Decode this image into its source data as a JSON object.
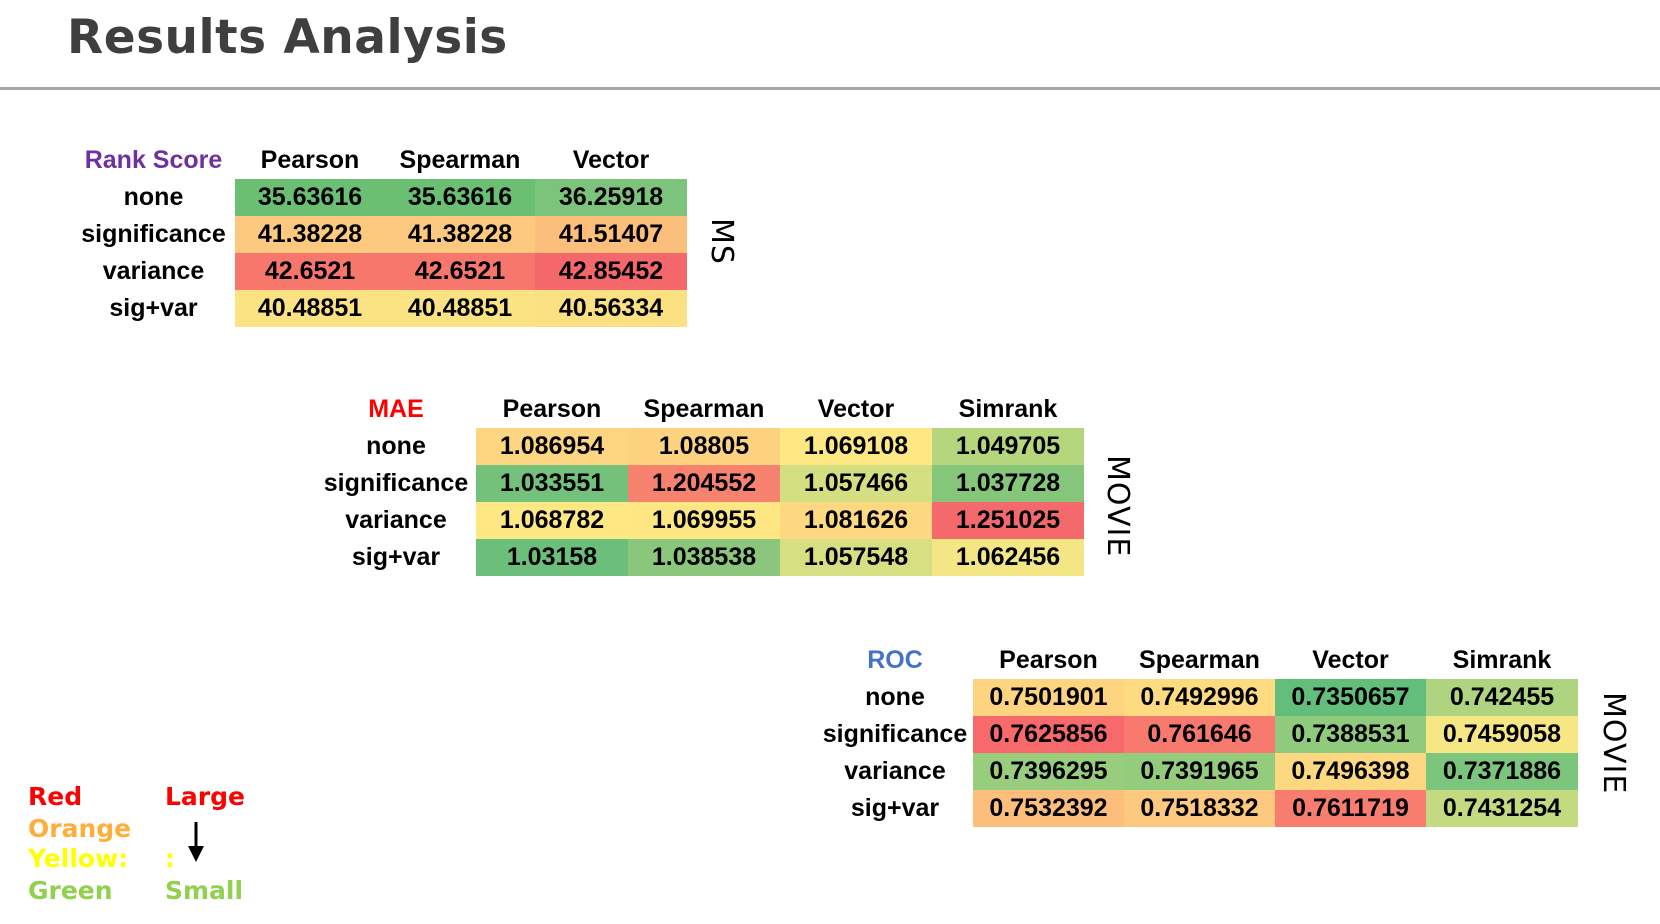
{
  "page": {
    "title": "Results Analysis"
  },
  "tables": [
    {
      "name": "Rank Score",
      "name_color": "#7030a0",
      "columns": [
        "Pearson",
        "Spearman",
        "Vector"
      ],
      "rows": [
        {
          "label": "none",
          "cells": [
            {
              "value": "35.63616",
              "color": "#6abf73"
            },
            {
              "value": "35.63616",
              "color": "#6abf73"
            },
            {
              "value": "36.25918",
              "color": "#7cc47c"
            }
          ]
        },
        {
          "label": "significance",
          "cells": [
            {
              "value": "41.38228",
              "color": "#fdc97f"
            },
            {
              "value": "41.38228",
              "color": "#fdc97f"
            },
            {
              "value": "41.51407",
              "color": "#fcbe7b"
            }
          ]
        },
        {
          "label": "variance",
          "cells": [
            {
              "value": "42.6521",
              "color": "#f8776d"
            },
            {
              "value": "42.6521",
              "color": "#f8776d"
            },
            {
              "value": "42.85452",
              "color": "#f4676b"
            }
          ]
        },
        {
          "label": "sig+var",
          "cells": [
            {
              "value": "40.48851",
              "color": "#fbe383"
            },
            {
              "value": "40.48851",
              "color": "#fbe383"
            },
            {
              "value": "40.56334",
              "color": "#fbe182"
            }
          ]
        }
      ],
      "side_label": "MS"
    },
    {
      "name": "MAE",
      "name_color": "#ff0000",
      "columns": [
        "Pearson",
        "Spearman",
        "Vector",
        "Simrank"
      ],
      "rows": [
        {
          "label": "none",
          "cells": [
            {
              "value": "1.086954",
              "color": "#fed580"
            },
            {
              "value": "1.08805",
              "color": "#fed380"
            },
            {
              "value": "1.069108",
              "color": "#fee883"
            },
            {
              "value": "1.049705",
              "color": "#b6d67e"
            }
          ]
        },
        {
          "label": "significance",
          "cells": [
            {
              "value": "1.033551",
              "color": "#73c17a"
            },
            {
              "value": "1.204552",
              "color": "#f7836f"
            },
            {
              "value": "1.057466",
              "color": "#d4df81"
            },
            {
              "value": "1.037728",
              "color": "#86c67b"
            }
          ]
        },
        {
          "label": "variance",
          "cells": [
            {
              "value": "1.068782",
              "color": "#fee883"
            },
            {
              "value": "1.069955",
              "color": "#fee683"
            },
            {
              "value": "1.081626",
              "color": "#fed981"
            },
            {
              "value": "1.251025",
              "color": "#f4696b"
            }
          ]
        },
        {
          "label": "sig+var",
          "cells": [
            {
              "value": "1.03158",
              "color": "#6bbf7a"
            },
            {
              "value": "1.038538",
              "color": "#8ac77c"
            },
            {
              "value": "1.057548",
              "color": "#d6df81"
            },
            {
              "value": "1.062456",
              "color": "#f2e784"
            }
          ]
        }
      ],
      "side_label": "MOVIE"
    },
    {
      "name": "ROC",
      "name_color": "#4472c4",
      "columns": [
        "Pearson",
        "Spearman",
        "Vector",
        "Simrank"
      ],
      "rows": [
        {
          "label": "none",
          "cells": [
            {
              "value": "0.7501901",
              "color": "#fed480"
            },
            {
              "value": "0.7492996",
              "color": "#feda81"
            },
            {
              "value": "0.7350657",
              "color": "#63be7b"
            },
            {
              "value": "0.742455",
              "color": "#aed47f"
            }
          ]
        },
        {
          "label": "significance",
          "cells": [
            {
              "value": "0.7625856",
              "color": "#f8696b"
            },
            {
              "value": "0.761646",
              "color": "#f87a6e"
            },
            {
              "value": "0.7388531",
              "color": "#90cb7d"
            },
            {
              "value": "0.7459058",
              "color": "#f7e784"
            }
          ]
        },
        {
          "label": "variance",
          "cells": [
            {
              "value": "0.7396295",
              "color": "#98cd7e"
            },
            {
              "value": "0.7391965",
              "color": "#94cc7d"
            },
            {
              "value": "0.7496398",
              "color": "#fed880"
            },
            {
              "value": "0.7371886",
              "color": "#7bc57c"
            }
          ]
        },
        {
          "label": "sig+var",
          "cells": [
            {
              "value": "0.7532392",
              "color": "#fdbe7b"
            },
            {
              "value": "0.7518332",
              "color": "#fdc97e"
            },
            {
              "value": "0.7611719",
              "color": "#f87d6f"
            },
            {
              "value": "0.7431254",
              "color": "#c3da80"
            }
          ]
        }
      ],
      "side_label": "MOVIE"
    }
  ],
  "legend": {
    "colors": [
      {
        "label": "Red",
        "color": "#ff0000"
      },
      {
        "label": "Orange",
        "color": "#ffae3b"
      },
      {
        "label": "Yellow:",
        "color": "#ffff00"
      },
      {
        "label": "Green",
        "color": "#92d050"
      }
    ],
    "large": {
      "label": "Large",
      "color": "#ff0000"
    },
    "colon": {
      "label": ":",
      "color": "#ffff00"
    },
    "small": {
      "label": "Small",
      "color": "#92d050"
    }
  }
}
